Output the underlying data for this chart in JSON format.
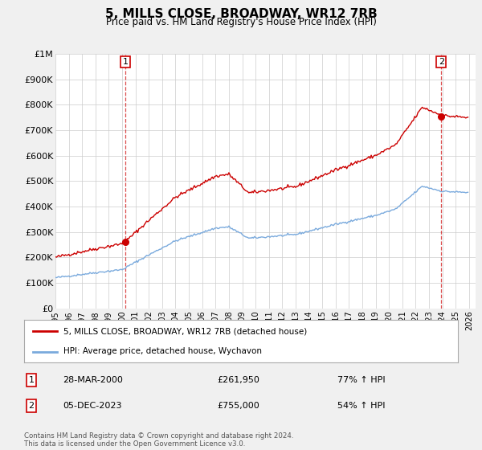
{
  "title": "5, MILLS CLOSE, BROADWAY, WR12 7RB",
  "subtitle": "Price paid vs. HM Land Registry's House Price Index (HPI)",
  "hpi_label": "HPI: Average price, detached house, Wychavon",
  "price_label": "5, MILLS CLOSE, BROADWAY, WR12 7RB (detached house)",
  "transactions": [
    {
      "num": 1,
      "date": "28-MAR-2000",
      "price": 261950,
      "pct": "77% ↑ HPI"
    },
    {
      "num": 2,
      "date": "05-DEC-2023",
      "price": 755000,
      "pct": "54% ↑ HPI"
    }
  ],
  "footnote": "Contains HM Land Registry data © Crown copyright and database right 2024.\nThis data is licensed under the Open Government Licence v3.0.",
  "ylim": [
    0,
    1000000
  ],
  "yticks": [
    0,
    100000,
    200000,
    300000,
    400000,
    500000,
    600000,
    700000,
    800000,
    900000,
    1000000
  ],
  "ytick_labels": [
    "£0",
    "£100K",
    "£200K",
    "£300K",
    "£400K",
    "£500K",
    "£600K",
    "£700K",
    "£800K",
    "£900K",
    "£1M"
  ],
  "xlim_start": 1995.0,
  "xlim_end": 2026.5,
  "bg_color": "#f0f0f0",
  "plot_bg_color": "#ffffff",
  "red_color": "#cc0000",
  "blue_color": "#7aaadd",
  "transaction1_x": 2000.24,
  "transaction1_y": 261950,
  "transaction2_x": 2023.92,
  "transaction2_y": 755000
}
